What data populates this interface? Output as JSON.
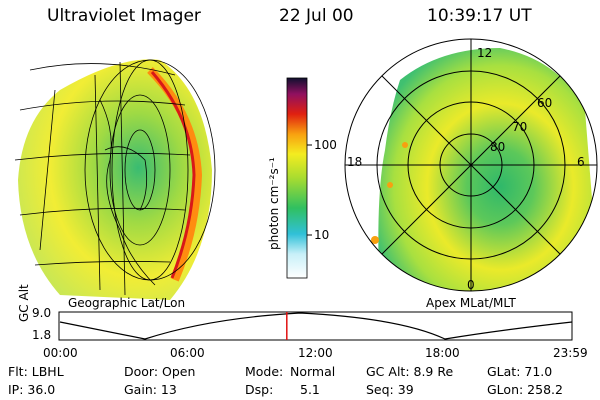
{
  "header": {
    "title": "Ultraviolet Imager",
    "date": "22 Jul 00",
    "time": "10:39:17 UT"
  },
  "left_panel": {
    "caption": "Geographic Lat/Lon"
  },
  "right_panel": {
    "caption": "Apex MLat/MLT",
    "mlt_labels": {
      "top": "12",
      "left": "18",
      "right": "6",
      "bottom": "0"
    },
    "mlat_labels": [
      "60",
      "70",
      "80"
    ]
  },
  "colorbar": {
    "label": "photon cm⁻²s⁻¹",
    "tick_labels": [
      "100",
      "10"
    ]
  },
  "timeline": {
    "ylabel": "GC Alt",
    "y_ticks": [
      "9.0",
      "1.8"
    ],
    "x_ticks": [
      "00:00",
      "06:00",
      "12:00",
      "18:00",
      "23:59"
    ],
    "marker_time": "10:39",
    "marker_color": "#e01010"
  },
  "info": {
    "filter": "Flt: LBHL",
    "ip": "IP: 36.0",
    "door": "Door: Open",
    "gain": "Gain: 13",
    "mode_label": "Mode:",
    "mode_value": "Normal",
    "dsp_label": "Dsp:",
    "dsp_value": "5.1",
    "gc_alt": "GC Alt: 8.9 Re",
    "seq": "Seq: 39",
    "glat": "GLat: 71.0",
    "glon": "GLon: 258.2"
  }
}
